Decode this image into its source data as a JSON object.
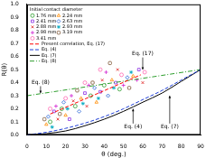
{
  "chart_data": {
    "type": "scatter",
    "x_label": "θ (deg.)",
    "y_label": "R(θ)",
    "legend_title": "Initial contact diameter",
    "legend": "upper left",
    "grid": false,
    "xlim": [
      0,
      90
    ],
    "xticks": [
      0,
      10,
      20,
      30,
      40,
      50,
      60,
      70,
      80,
      90
    ],
    "ylim": [
      0,
      1
    ],
    "yticks": [
      {
        "value": 0,
        "label": "0.0"
      },
      0.1,
      0.2,
      0.3,
      0.4,
      0.5,
      0.6,
      0.7,
      0.8,
      0.9,
      {
        "value": 1,
        "label": "1.0"
      }
    ],
    "series": [
      {
        "name": "1.76 mm",
        "color": "#2e9e2e",
        "marker": "circle",
        "x": [
          12,
          18,
          25,
          33,
          40,
          48
        ],
        "values": [
          0.1,
          0.2,
          0.22,
          0.3,
          0.38,
          0.35
        ]
      },
      {
        "name": "2.24 mm",
        "color": "#ff8c00",
        "marker": "triangle",
        "x": [
          10,
          20,
          28,
          36,
          44,
          55
        ],
        "values": [
          0.08,
          0.15,
          0.28,
          0.25,
          0.42,
          0.45
        ]
      },
      {
        "name": "2.41 mm",
        "color": "#8a2be2",
        "marker": "square",
        "x": [
          14,
          22,
          30,
          38,
          46,
          58
        ],
        "values": [
          0.18,
          0.12,
          0.32,
          0.33,
          0.4,
          0.5
        ]
      },
      {
        "name": "2.63 mm",
        "color": "#1f5fd6",
        "marker": "diamond",
        "x": [
          11,
          19,
          27,
          35,
          42,
          52
        ],
        "values": [
          0.14,
          0.25,
          0.18,
          0.36,
          0.3,
          0.44
        ]
      },
      {
        "name": "2.88 mm",
        "color": "#e02020",
        "marker": "x",
        "x": [
          16,
          24,
          31,
          39,
          47,
          60
        ],
        "values": [
          0.12,
          0.26,
          0.22,
          0.42,
          0.5,
          0.4
        ]
      },
      {
        "name": "2.93 mm",
        "color": "#00a8c0",
        "marker": "star",
        "x": [
          13,
          21,
          29,
          37,
          45,
          54
        ],
        "values": [
          0.06,
          0.2,
          0.24,
          0.28,
          0.36,
          0.48
        ]
      },
      {
        "name": "2.98 mm",
        "color": "#d020d0",
        "marker": "cross",
        "x": [
          15,
          23,
          32,
          41,
          50,
          57
        ],
        "values": [
          0.22,
          0.3,
          0.38,
          0.48,
          0.38,
          0.42
        ]
      },
      {
        "name": "3.19 mm",
        "color": "#7a5230",
        "marker": "rounded_square",
        "x": [
          9,
          17,
          26,
          34,
          43,
          53
        ],
        "values": [
          0.12,
          0.16,
          0.34,
          0.4,
          0.55,
          0.36
        ]
      },
      {
        "name": "3.41 mm",
        "color": "#ff69b4",
        "marker": "circle",
        "x": [
          12,
          20,
          30,
          38,
          49,
          61
        ],
        "values": [
          0.2,
          0.28,
          0.4,
          0.5,
          0.46,
          0.48
        ]
      },
      {
        "name": "Present correlation, Eq. (17)",
        "type": "line",
        "color": "#ff0000",
        "line_style": "dashed",
        "x": [
          12,
          59
        ],
        "values": [
          0.16,
          0.46
        ]
      },
      {
        "name": "Eq. (4)",
        "type": "line",
        "color": "#1f3fd6",
        "line_style": "dashed",
        "x": [
          0,
          10,
          20,
          30,
          40,
          50,
          60,
          70,
          80,
          90
        ],
        "values": [
          0,
          0.02,
          0.05,
          0.09,
          0.14,
          0.2,
          0.27,
          0.34,
          0.42,
          0.5
        ]
      },
      {
        "name": "Eq. (7)",
        "type": "line",
        "color": "#000000",
        "line_style": "solid",
        "x": [
          0,
          10,
          20,
          30,
          40,
          50,
          60,
          70,
          80,
          90
        ],
        "values": [
          0,
          0.01,
          0.03,
          0.07,
          0.12,
          0.18,
          0.25,
          0.32,
          0.41,
          0.5
        ]
      },
      {
        "name": "Eq. (8)",
        "type": "line",
        "color": "#2e9e2e",
        "line_style": "dashdot",
        "x": [
          0,
          90
        ],
        "values": [
          0.3,
          0.5
        ]
      }
    ],
    "annotations": [
      {
        "text": "Eq. (8)",
        "xytext": [
          7,
          0.38
        ],
        "xy": [
          7,
          0.32
        ]
      },
      {
        "text": "Eq. (17)",
        "xytext": [
          60,
          0.6
        ],
        "xy": [
          60,
          0.5
        ]
      },
      {
        "text": "Eq. (4)",
        "xytext": [
          55,
          0.08
        ],
        "xy": [
          55,
          0.2
        ]
      },
      {
        "text": "Eq. (7)",
        "xytext": [
          74,
          0.08
        ],
        "xy": [
          74,
          0.3
        ]
      }
    ]
  }
}
